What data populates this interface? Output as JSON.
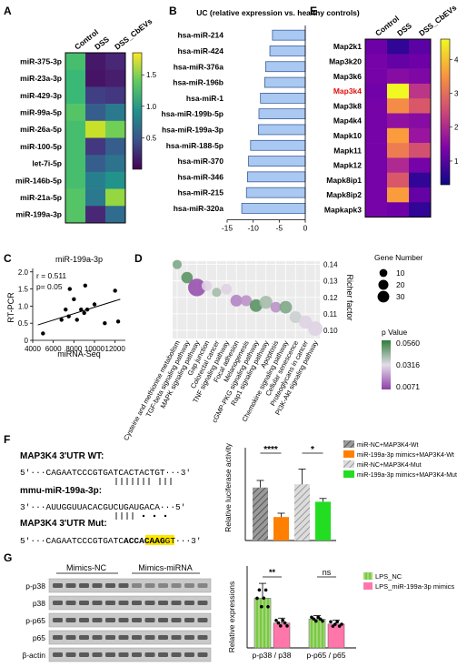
{
  "panel_labels": {
    "A": "A",
    "B": "B",
    "C": "C",
    "D": "D",
    "E": "E",
    "F": "F",
    "G": "G"
  },
  "colors": {
    "viridis": [
      "#440154",
      "#482878",
      "#3e4989",
      "#31688e",
      "#26828e",
      "#1f9e89",
      "#35b779",
      "#6ece58",
      "#b5de2b",
      "#fde725"
    ],
    "plasma": [
      "#0d0887",
      "#46039f",
      "#7201a8",
      "#9c179e",
      "#bd3786",
      "#d8576b",
      "#ed7953",
      "#fb9f3a",
      "#fdca26",
      "#f0f921"
    ],
    "bar_blue": "#a9c8f2",
    "bar_stroke": "#2a4d8f",
    "dot_low": "#8e3fa8",
    "dot_mid": "#e3dde7",
    "dot_high": "#2f7d3a",
    "gray": "#6b6b6b",
    "orange": "#ff8000",
    "green": "#22dd22",
    "lps_nc": "#7ac943",
    "lps_mimic": "#ff77aa",
    "highlight": "#ffe600",
    "red_label": "#e11111"
  },
  "chart_data": [
    {
      "id": "A",
      "type": "heatmap",
      "columns": [
        "Control",
        "DSS",
        "DSS_CbEVs"
      ],
      "rows": [
        "miR-375-3p",
        "miR-23a-3p",
        "miR-429-3p",
        "miR-99a-5p",
        "miR-26a-5p",
        "miR-100-5p",
        "let-7i-5p",
        "miR-146b-5p",
        "miR-21a-5p",
        "miR-199a-3p"
      ],
      "values": [
        [
          1.3,
          0.12,
          0.2
        ],
        [
          1.25,
          0.1,
          0.15
        ],
        [
          1.25,
          0.35,
          0.3
        ],
        [
          1.35,
          0.55,
          0.75
        ],
        [
          1.3,
          1.7,
          1.45
        ],
        [
          1.3,
          0.3,
          0.55
        ],
        [
          1.3,
          0.55,
          0.7
        ],
        [
          1.3,
          0.8,
          0.95
        ],
        [
          1.35,
          0.75,
          1.55
        ],
        [
          1.35,
          0.2,
          0.65
        ]
      ],
      "vmin": 0,
      "vmax": 1.85,
      "colorbar_ticks": [
        0.5,
        1.0,
        1.5
      ],
      "colorbar_labels": [
        "0.5",
        "1.0",
        "1.5"
      ]
    },
    {
      "id": "B",
      "type": "bar",
      "title": "UC (relative expression vs. healthy controls)",
      "categories": [
        "hsa-miR-214",
        "hsa-miR-424",
        "hsa-miR-376a",
        "hsa-miR-196b",
        "hsa-miR-1",
        "hsa-miR-199b-5p",
        "hsa-miR-199a-3p",
        "hsa-miR-188-5p",
        "hsa-miR-370",
        "hsa-miR-346",
        "hsa-miR-215",
        "hsa-miR-320a"
      ],
      "values": [
        -6.3,
        -6.8,
        -7.6,
        -7.8,
        -8.6,
        -8.9,
        -9.0,
        -10.5,
        -10.9,
        -11.1,
        -11.3,
        -12.2
      ],
      "xlim": [
        -15,
        0
      ],
      "xticks": [
        -15,
        -10,
        -5,
        0
      ],
      "xtick_labels": [
        "-15",
        "-10",
        "-5",
        "0"
      ]
    },
    {
      "id": "C",
      "type": "scatter",
      "title": "miR-199a-3p",
      "xlabel": "miRNA-Seq",
      "ylabel": "RT-PCR",
      "annotation_r": "r = 0.511",
      "annotation_p": "p= 0.05",
      "xlim": [
        4000,
        13000
      ],
      "ylim": [
        0,
        2.1
      ],
      "xticks": [
        4000,
        6000,
        8000,
        10000,
        12000
      ],
      "xtick_labels": [
        "4000",
        "6000",
        "8000",
        "10000",
        "12000"
      ],
      "yticks": [
        0,
        0.5,
        1.0,
        1.5,
        2.0
      ],
      "ytick_labels": [
        "0",
        "0.5",
        "1.0",
        "1.5",
        "2.0"
      ],
      "points": [
        [
          5000,
          0.2
        ],
        [
          6800,
          0.6
        ],
        [
          7200,
          0.9
        ],
        [
          7600,
          1.5
        ],
        [
          7500,
          0.7
        ],
        [
          8000,
          1.2
        ],
        [
          8300,
          0.6
        ],
        [
          8700,
          0.9
        ],
        [
          9000,
          0.8
        ],
        [
          9100,
          1.6
        ],
        [
          9300,
          0.9
        ],
        [
          10000,
          1.05
        ],
        [
          11000,
          0.5
        ],
        [
          12000,
          1.45
        ],
        [
          12300,
          0.55
        ]
      ],
      "fit": [
        [
          4500,
          0.45
        ],
        [
          12500,
          1.2
        ]
      ]
    },
    {
      "id": "D",
      "type": "scatter",
      "ylabel": "Richer factor",
      "size_legend_title": "Gene Number",
      "size_legend": [
        10,
        20,
        30
      ],
      "color_legend_title": "p Value",
      "color_legend_labels": [
        "0.0560",
        "0.0316",
        "0.0071"
      ],
      "ylim": [
        0.095,
        0.142
      ],
      "yticks": [
        0.1,
        0.11,
        0.12,
        0.13,
        0.14
      ],
      "ytick_labels": [
        "0.10",
        "0.11",
        "0.12",
        "0.13",
        "0.14"
      ],
      "categories": [
        "Cysteine and methionine metabolism",
        "TGF-beta signaling pathway",
        "MAPK signaling pathway",
        "Gap junction",
        "Colorectal cancer",
        "TNF signaling pathway",
        "Focal adhesion",
        "Melanogenesis",
        "cGMP-PKG signaling pathway",
        "Rap1 signaling pathway",
        "Apoptosis",
        "Chemokine signaling pathway",
        "Cellular senescence",
        "Proteoglycans in cancer",
        "PI3K-Akt signaling pathway"
      ],
      "y": [
        0.14,
        0.132,
        0.126,
        0.127,
        0.123,
        0.125,
        0.118,
        0.118,
        0.115,
        0.117,
        0.114,
        0.114,
        0.108,
        0.105,
        0.101
      ],
      "gene_number": [
        6,
        11,
        32,
        8,
        6,
        9,
        12,
        10,
        14,
        15,
        9,
        14,
        12,
        15,
        20
      ],
      "p_value": [
        0.045,
        0.05,
        0.01,
        0.03,
        0.04,
        0.03,
        0.018,
        0.02,
        0.05,
        0.04,
        0.02,
        0.045,
        0.035,
        0.03,
        0.03
      ]
    },
    {
      "id": "E",
      "type": "heatmap",
      "columns": [
        "Control",
        "DSS",
        "DSS_CbEVs"
      ],
      "rows": [
        "Map2k1",
        "Map3k20",
        "Map3k6",
        "Map3k4",
        "Map3k8",
        "Map4k4",
        "Mapk10",
        "Mapk11",
        "Mapk12",
        "Mapk8ip1",
        "Mapk8ip2",
        "Mapkapk3"
      ],
      "values": [
        [
          1.2,
          0.6,
          1.0
        ],
        [
          1.3,
          1.1,
          1.2
        ],
        [
          1.3,
          1.5,
          1.4
        ],
        [
          1.25,
          4.6,
          2.2
        ],
        [
          1.3,
          3.4,
          2.7
        ],
        [
          1.3,
          1.6,
          1.5
        ],
        [
          1.3,
          3.6,
          1.7
        ],
        [
          1.3,
          3.2,
          2.6
        ],
        [
          1.3,
          2.0,
          1.3
        ],
        [
          1.3,
          2.7,
          0.6
        ],
        [
          1.3,
          3.6,
          1.1
        ],
        [
          1.3,
          1.2,
          0.6
        ]
      ],
      "highlight_row": "Map3k4",
      "vmin": 0.3,
      "vmax": 4.6,
      "colorbar_ticks": [
        1,
        2,
        3,
        4
      ],
      "colorbar_labels": [
        "1",
        "2",
        "3",
        "4"
      ]
    },
    {
      "id": "F",
      "type": "bar",
      "ylabel": "Relative luciferase activity",
      "categories": [
        "miR-NC+MAP3K4-Wt",
        "miR-199a-3p mimics+MAP3K4-Wt",
        "miR-NC+MAP3K4-Mut",
        "miR-199a-3p mimics+MAP3K4-Mut"
      ],
      "values": [
        9.7,
        4.3,
        10.3,
        7.1
      ],
      "errors": [
        1.3,
        0.7,
        2.8,
        0.6
      ],
      "ylim": [
        0,
        17
      ],
      "significance": [
        {
          "from": 0,
          "to": 1,
          "label": "****"
        },
        {
          "from": 2,
          "to": 3,
          "label": "*"
        }
      ]
    },
    {
      "id": "G",
      "type": "bar",
      "ylabel": "Relative expressions",
      "categories": [
        "p-p38 / p38",
        "p-p65 / p65"
      ],
      "series": [
        {
          "name": "LPS_NC",
          "values": [
            1.0,
            0.58
          ],
          "errors": [
            0.3,
            0.07
          ]
        },
        {
          "name": "LPS_miR-199a-3p mimics",
          "values": [
            0.5,
            0.48
          ],
          "errors": [
            0.1,
            0.08
          ]
        }
      ],
      "ylim": [
        0,
        1.65
      ],
      "significance": [
        "**",
        "ns"
      ]
    }
  ],
  "panel_f_text": {
    "wt_title": "MAP3K4 3'UTR WT:",
    "wt_seq": "5'···CAGAATCCCGTGATCACTACTGT···3'",
    "mir_title": "mmu-miR-199a-3p:",
    "mir_seq": "3'···AUUGGUUACACGUCUGAUGACA···5'",
    "mut_title": "MAP3K4 3'UTR Mut:",
    "mut_seq_pre": "5'···CAGAATCCCGTGATC",
    "mut_seq_bold1": "ACCA",
    "mut_seq_highlight": "CAAG",
    "mut_seq_post": "GT···3'"
  },
  "panel_g_blot": {
    "group1": "Mimics-NC",
    "group2": "Mimics-miRNA",
    "rows": [
      "p-p38",
      "p38",
      "p-p65",
      "p65",
      "β-actin"
    ]
  }
}
